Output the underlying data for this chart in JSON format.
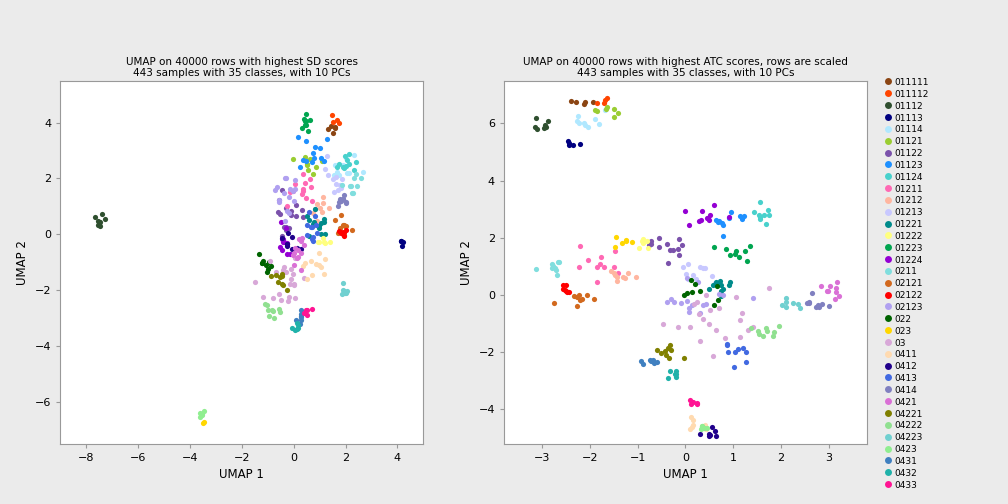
{
  "title1": "UMAP on 40000 rows with highest SD scores\n443 samples with 35 classes, with 10 PCs",
  "title2": "UMAP on 40000 rows with highest ATC scores, rows are scaled\n443 samples with 35 classes, with 10 PCs",
  "xlabel": "UMAP 1",
  "ylabel": "UMAP 2",
  "classes": [
    "011111",
    "011112",
    "01112",
    "01113",
    "01114",
    "01121",
    "01122",
    "01123",
    "01124",
    "01211",
    "01212",
    "01213",
    "01221",
    "01222",
    "01223",
    "01224",
    "0211",
    "02121",
    "02122",
    "02123",
    "022",
    "023",
    "03",
    "0411",
    "0412",
    "0413",
    "0414",
    "0421",
    "04221",
    "04222",
    "04223",
    "0423",
    "0431",
    "0432",
    "0433"
  ],
  "colors": [
    "#8B4513",
    "#FF4500",
    "#2F4F2F",
    "#000080",
    "#B0E8FF",
    "#9ACD32",
    "#7B52AB",
    "#1E90FF",
    "#48D1CC",
    "#FF69B4",
    "#FFB6A0",
    "#C8C8FF",
    "#008B8B",
    "#FFFF80",
    "#00A550",
    "#9400D3",
    "#80DEDE",
    "#D2691E",
    "#FF0000",
    "#B0A0F0",
    "#006400",
    "#FFD700",
    "#D8A8D8",
    "#FFDAB0",
    "#20008B",
    "#4169E1",
    "#8080C0",
    "#DA70D6",
    "#808000",
    "#90E090",
    "#70D0D0",
    "#90EE90",
    "#4080C0",
    "#20B2AA",
    "#FF1493"
  ],
  "xlim1": [
    -9,
    5
  ],
  "ylim1": [
    -7.5,
    5.5
  ],
  "xlim2": [
    -3.8,
    3.8
  ],
  "ylim2": [
    -5.2,
    7.5
  ],
  "xticks1": [
    -8,
    -6,
    -4,
    -2,
    0,
    2,
    4
  ],
  "yticks1": [
    -6,
    -4,
    -2,
    0,
    2,
    4
  ],
  "xticks2": [
    -3,
    -2,
    -1,
    0,
    1,
    2,
    3
  ],
  "yticks2": [
    -4,
    -2,
    0,
    2,
    4,
    6
  ],
  "background_color": "#EBEBEB",
  "plot_bg": "#FFFFFF"
}
